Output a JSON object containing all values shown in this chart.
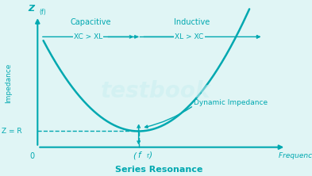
{
  "bg_color": "#e0f5f5",
  "curve_color": "#00a8b0",
  "text_color": "#00a8b0",
  "title": "Series Resonance",
  "ylabel": "Impedance",
  "xlabel": "Frequency, f",
  "z_label": "Z = R",
  "z_axis_label": "Z",
  "z_axis_sub": "(f)",
  "resonance_label": "(f",
  "resonance_sup": "r",
  "resonance_close": ")",
  "capacitive_label": "Capacitive",
  "inductive_label": "Inductive",
  "xc_xl_label": "XC > XL",
  "xl_xc_label": "XL > XC",
  "dynamic_label": "Dynamic Impedance",
  "zero_label": "0",
  "watermark": "testbook"
}
